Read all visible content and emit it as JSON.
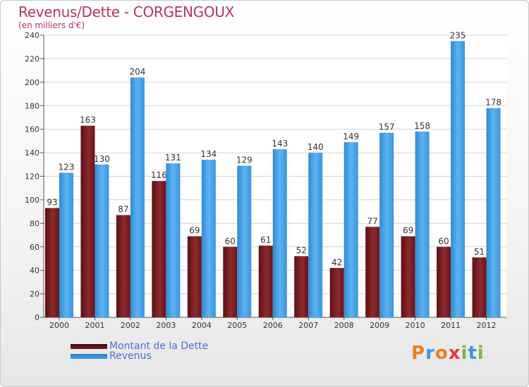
{
  "header": {
    "title": "Revenus/Dette - CORGENGOUX",
    "subtitle": "(en milliers d'€)"
  },
  "logo": {
    "letters": [
      "P",
      "r",
      "o",
      "x",
      "i",
      "t",
      "i"
    ]
  },
  "colors": {
    "dette": "#7a1e22",
    "revenus": "#3d9be3",
    "title": "#b43464",
    "legend_text": "#4f6fd6"
  },
  "chart_data": {
    "type": "bar",
    "title": "Revenus/Dette - CORGENGOUX",
    "ylabel": "(en milliers d'€)",
    "categories": [
      "2000",
      "2001",
      "2002",
      "2003",
      "2004",
      "2005",
      "2006",
      "2007",
      "2008",
      "2009",
      "2010",
      "2011",
      "2012"
    ],
    "series": [
      {
        "name": "Montant de la Dette",
        "values": [
          93,
          163,
          87,
          116,
          69,
          60,
          61,
          52,
          42,
          77,
          69,
          60,
          51
        ]
      },
      {
        "name": "Revenus",
        "values": [
          123,
          130,
          204,
          131,
          134,
          129,
          143,
          140,
          149,
          157,
          158,
          235,
          178
        ]
      }
    ],
    "ylim": [
      0,
      240
    ],
    "yticks": [
      0,
      20,
      40,
      60,
      80,
      100,
      120,
      140,
      160,
      180,
      200,
      220,
      240
    ],
    "grid": true,
    "legend": "bottom-left",
    "data_labels": true
  }
}
